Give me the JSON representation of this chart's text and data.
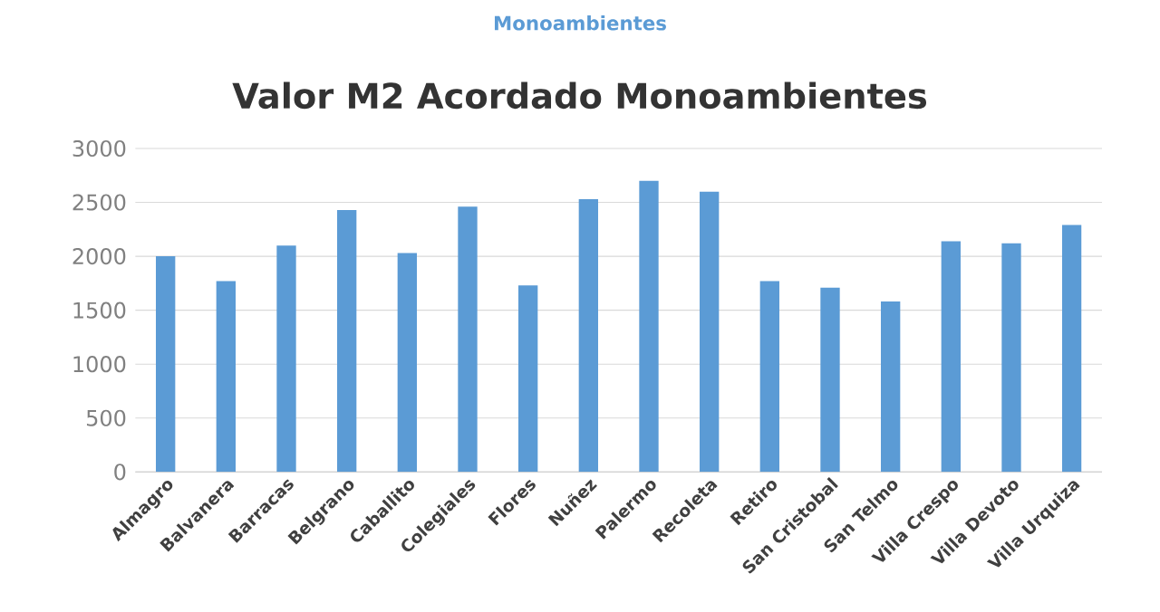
{
  "chart_data": {
    "type": "bar",
    "title": "Valor M2 Acordado Monoambientes",
    "subtitle": "Monoambientes",
    "categories": [
      "Almagro",
      "Balvanera",
      "Barracas",
      "Belgrano",
      "Caballito",
      "Colegiales",
      "Flores",
      "Nuñez",
      "Palermo",
      "Recoleta",
      "Retiro",
      "San Cristobal",
      "San Telmo",
      "Villa Crespo",
      "Villa Devoto",
      "Villa Urquiza"
    ],
    "values": [
      2000,
      1770,
      2100,
      2430,
      2030,
      2460,
      1730,
      2530,
      2700,
      2600,
      1770,
      1710,
      1580,
      2140,
      2120,
      2290
    ],
    "color": "#5b9bd5",
    "ylim": [
      0,
      3000
    ],
    "yticks": [
      0,
      500,
      1000,
      1500,
      2000,
      2500,
      3000
    ],
    "grid": "y"
  }
}
